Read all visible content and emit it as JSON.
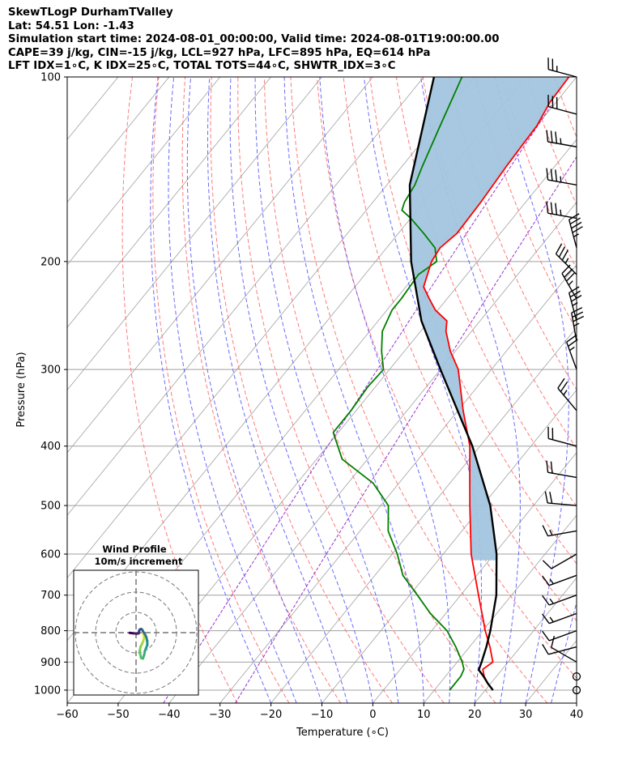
{
  "header": {
    "title": "SkewTLogP DurhamTValley",
    "location": "Lat: 54.51   Lon: -1.43",
    "times": "Simulation start time: 2024-08-01_00:00:00, Valid time: 2024-08-01T19:00:00.00",
    "indices1": "CAPE=39 j/kg, CIN=-15 j/kg, LCL=927 hPa, LFC=895 hPa, EQ=614 hPa",
    "indices2": "LFT IDX=1∘C, K IDX=25∘C, TOTAL TOTS=44∘C, SHWTR_IDX=3∘C"
  },
  "colors": {
    "temperature": "#ff0000",
    "dewpoint": "#008000",
    "parcel": "#000000",
    "cape_fill": "#a2c5de",
    "dry_adiabat": "#ff6b6b",
    "moist_adiabat": "#5050ff",
    "mixing_ratio": "#9932cc",
    "isotherm": "#a0a0a0"
  },
  "chart_data": [
    {
      "type": "skewt-logp",
      "xlabel": "Temperature (∘C)",
      "ylabel": "Pressure (hPa)",
      "xlim": [
        -60,
        40
      ],
      "ylim": [
        1050,
        100
      ],
      "x_ticks": [
        "−60",
        "−50",
        "−40",
        "−30",
        "−20",
        "−10",
        "0",
        "10",
        "20",
        "30",
        "40"
      ],
      "y_ticks": [
        1000,
        900,
        800,
        700,
        600,
        500,
        400,
        300,
        200,
        100
      ],
      "series": [
        {
          "name": "Temperature",
          "points": [
            [
              1000,
              21.5
            ],
            [
              975,
              19.4
            ],
            [
              950,
              17.6
            ],
            [
              925,
              16.2
            ],
            [
              900,
              17.0
            ],
            [
              850,
              14.0
            ],
            [
              800,
              10.5
            ],
            [
              700,
              3.5
            ],
            [
              600,
              -4.5
            ],
            [
              500,
              -12.5
            ],
            [
              450,
              -17.0
            ],
            [
              400,
              -22.0
            ],
            [
              350,
              -29.0
            ],
            [
              300,
              -36.5
            ],
            [
              280,
              -41.0
            ],
            [
              260,
              -45.0
            ],
            [
              250,
              -46.5
            ],
            [
              240,
              -50.5
            ],
            [
              230,
              -53.5
            ],
            [
              220,
              -56.5
            ],
            [
              200,
              -59.0
            ],
            [
              190,
              -59.5
            ],
            [
              180,
              -58.5
            ],
            [
              160,
              -58.8
            ],
            [
              140,
              -59.5
            ],
            [
              120,
              -60.0
            ],
            [
              110,
              -61.2
            ],
            [
              100,
              -61.5
            ]
          ]
        },
        {
          "name": "Dewpoint",
          "points": [
            [
              1000,
              13.0
            ],
            [
              950,
              13.0
            ],
            [
              925,
              12.5
            ],
            [
              900,
              11.0
            ],
            [
              850,
              7.3
            ],
            [
              800,
              3.0
            ],
            [
              750,
              -3.0
            ],
            [
              700,
              -8.5
            ],
            [
              650,
              -14.5
            ],
            [
              600,
              -19.0
            ],
            [
              550,
              -24.5
            ],
            [
              500,
              -28.5
            ],
            [
              460,
              -35.0
            ],
            [
              420,
              -45.0
            ],
            [
              380,
              -51.0
            ],
            [
              350,
              -51.0
            ],
            [
              320,
              -51.5
            ],
            [
              300,
              -51.2
            ],
            [
              280,
              -54.5
            ],
            [
              260,
              -57.5
            ],
            [
              240,
              -59.0
            ],
            [
              230,
              -59.0
            ],
            [
              210,
              -59.5
            ],
            [
              200,
              -58.0
            ],
            [
              190,
              -60.5
            ],
            [
              180,
              -65.0
            ],
            [
              170,
              -70.0
            ],
            [
              165,
              -73.0
            ],
            [
              160,
              -73.8
            ],
            [
              150,
              -74.5
            ],
            [
              140,
              -76.0
            ],
            [
              120,
              -79.0
            ],
            [
              100,
              -82.5
            ]
          ]
        },
        {
          "name": "Parcel",
          "points": [
            [
              1000,
              21.5
            ],
            [
              975,
              19.4
            ],
            [
              950,
              17.5
            ],
            [
              927,
              15.5
            ],
            [
              900,
              14.8
            ],
            [
              850,
              13.3
            ],
            [
              800,
              11.5
            ],
            [
              700,
              7.0
            ],
            [
              600,
              0.5
            ],
            [
              500,
              -8.5
            ],
            [
              400,
              -21.5
            ],
            [
              300,
              -40.0
            ],
            [
              250,
              -51.5
            ],
            [
              200,
              -63.0
            ],
            [
              150,
              -75.5
            ],
            [
              100,
              -88.0
            ]
          ]
        }
      ],
      "cape_shading": "between parcel and temperature above the LFC",
      "wind_barbs": {
        "levels_hPa": [
          1000,
          950,
          900,
          850,
          800,
          750,
          700,
          650,
          600,
          550,
          500,
          450,
          400,
          350,
          300,
          270,
          250,
          230,
          210,
          190,
          170,
          150,
          130,
          115,
          100
        ],
        "speed_kt": [
          0,
          0,
          10,
          12,
          10,
          15,
          15,
          15,
          12,
          15,
          20,
          20,
          20,
          25,
          25,
          35,
          35,
          35,
          35,
          45,
          35,
          35,
          35,
          30,
          25
        ],
        "direction_deg": [
          0,
          0,
          300,
          255,
          250,
          250,
          250,
          250,
          240,
          260,
          275,
          280,
          285,
          320,
          340,
          350,
          345,
          330,
          315,
          345,
          280,
          280,
          280,
          285,
          285
        ]
      }
    },
    {
      "type": "hodograph",
      "title": "Wind Profile",
      "subtitle": "10m/s increment",
      "ring_step_ms": 10,
      "units": "m/s",
      "points_uv": [
        [
          3.5,
          -0.5
        ],
        [
          3.8,
          -1.5
        ],
        [
          4.0,
          -2.5
        ],
        [
          3.6,
          -4.0
        ],
        [
          3.0,
          -5.5
        ],
        [
          2.2,
          -7.0
        ],
        [
          1.8,
          -9.0
        ],
        [
          2.0,
          -10.5
        ],
        [
          2.5,
          -12.5
        ],
        [
          3.4,
          -12.8
        ],
        [
          4.0,
          -11.0
        ],
        [
          4.4,
          -9.0
        ],
        [
          5.0,
          -7.5
        ],
        [
          5.6,
          -6.0
        ],
        [
          5.5,
          -4.0
        ],
        [
          5.0,
          -2.0
        ],
        [
          4.2,
          -0.5
        ],
        [
          3.5,
          0.5
        ],
        [
          3.0,
          1.5
        ],
        [
          2.5,
          1.8
        ],
        [
          1.8,
          1.5
        ],
        [
          1.5,
          0.8
        ],
        [
          1.4,
          -0.3
        ],
        [
          0.5,
          -0.5
        ],
        [
          -0.5,
          -0.4
        ],
        [
          -1.5,
          -0.3
        ],
        [
          -2.5,
          -0.2
        ],
        [
          -3.2,
          -0.1
        ]
      ]
    }
  ]
}
